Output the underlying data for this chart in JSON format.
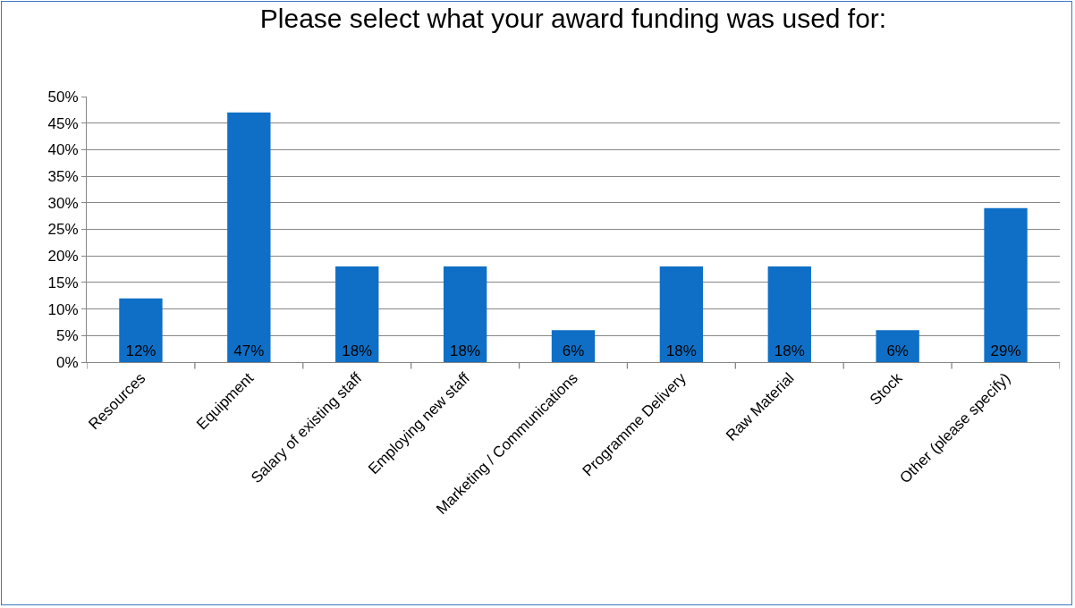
{
  "chart_data": {
    "type": "bar",
    "title": "Please select what your award funding was used for:",
    "categories": [
      "Resources",
      "Equipment",
      "Salary of existing staff",
      "Employing new staff",
      "Marketing / Communications",
      "Programme Delivery",
      "Raw Material",
      "Stock",
      "Other (please specify)"
    ],
    "values": [
      12,
      47,
      18,
      18,
      6,
      18,
      18,
      6,
      29
    ],
    "value_labels": [
      "12%",
      "47%",
      "18%",
      "18%",
      "6%",
      "18%",
      "18%",
      "6%",
      "29%"
    ],
    "color": "#0f6fc6",
    "ylim": [
      0,
      50
    ],
    "yticks": [
      {
        "value": 0,
        "label": "0%"
      },
      {
        "value": 5,
        "label": "5%"
      },
      {
        "value": 10,
        "label": "10%"
      },
      {
        "value": 15,
        "label": "15%"
      },
      {
        "value": 20,
        "label": "20%"
      },
      {
        "value": 25,
        "label": "25%"
      },
      {
        "value": 30,
        "label": "30%"
      },
      {
        "value": 35,
        "label": "35%"
      },
      {
        "value": 40,
        "label": "40%"
      },
      {
        "value": 45,
        "label": "45%"
      },
      {
        "value": 50,
        "label": "50%"
      }
    ],
    "grid": "y"
  }
}
